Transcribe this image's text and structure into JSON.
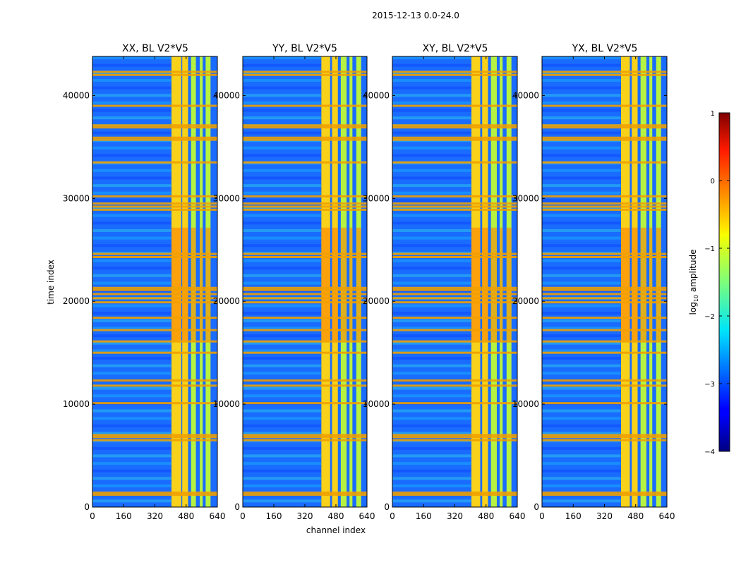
{
  "figure": {
    "suptitle": "2015-12-13 0.0-24.0",
    "xlabel": "channel index",
    "ylabel": "time index"
  },
  "colorbar": {
    "label": "log",
    "label_sub": "10",
    "label_suffix": " amplitude",
    "range": [
      -4,
      1
    ],
    "ticks": [
      1,
      0,
      -1,
      -2,
      -3,
      -4
    ],
    "tick_labels": [
      "1",
      "0",
      "−1",
      "−2",
      "−3",
      "−4"
    ],
    "colormap": "jet"
  },
  "chart_data": [
    {
      "type": "heatmap",
      "title": "XX, BL V2*V5",
      "x_range": [
        0,
        640
      ],
      "y_range": [
        0,
        43800
      ],
      "x_ticks": [
        0,
        160,
        320,
        480,
        640
      ],
      "y_ticks": [
        0,
        10000,
        20000,
        30000,
        40000
      ],
      "strong_channel_bands": [
        [
          405,
          455
        ],
        [
          460,
          490
        ],
        [
          505,
          530
        ],
        [
          550,
          565
        ],
        [
          580,
          605
        ]
      ],
      "extra_band": [
        400,
        640
      ]
    },
    {
      "type": "heatmap",
      "title": "YY, BL V2*V5",
      "x_range": [
        0,
        640
      ],
      "y_range": [
        0,
        43800
      ],
      "x_ticks": [
        0,
        160,
        320,
        480,
        640
      ],
      "y_ticks": [
        0,
        10000,
        20000,
        30000,
        40000
      ],
      "strong_channel_bands": [
        [
          405,
          450
        ],
        [
          460,
          490
        ],
        [
          505,
          535
        ],
        [
          550,
          565
        ],
        [
          585,
          610
        ]
      ]
    },
    {
      "type": "heatmap",
      "title": "XY, BL V2*V5",
      "x_range": [
        0,
        640
      ],
      "y_range": [
        0,
        43800
      ],
      "x_ticks": [
        0,
        160,
        320,
        480,
        640
      ],
      "y_ticks": [
        0,
        10000,
        20000,
        30000,
        40000
      ],
      "strong_channel_bands": [
        [
          405,
          450
        ],
        [
          460,
          490
        ],
        [
          505,
          535
        ],
        [
          550,
          565
        ],
        [
          585,
          610
        ]
      ]
    },
    {
      "type": "heatmap",
      "title": "YX, BL V2*V5",
      "x_range": [
        0,
        640
      ],
      "y_range": [
        0,
        43800
      ],
      "x_ticks": [
        0,
        160,
        320,
        480,
        640
      ],
      "y_ticks": [
        0,
        10000,
        20000,
        30000,
        40000
      ],
      "strong_channel_bands": [
        [
          405,
          450
        ],
        [
          460,
          490
        ],
        [
          505,
          535
        ],
        [
          550,
          565
        ],
        [
          585,
          610
        ]
      ]
    }
  ],
  "rfi_time_rows": [
    1200,
    1400,
    6500,
    6800,
    7000,
    10100,
    11800,
    12300,
    15000,
    16100,
    17200,
    18400,
    19900,
    20300,
    20700,
    21100,
    21300,
    24300,
    24600,
    28900,
    29200,
    29500,
    30200,
    33500,
    35700,
    35900,
    36900,
    37100,
    39000,
    42000,
    42300
  ]
}
